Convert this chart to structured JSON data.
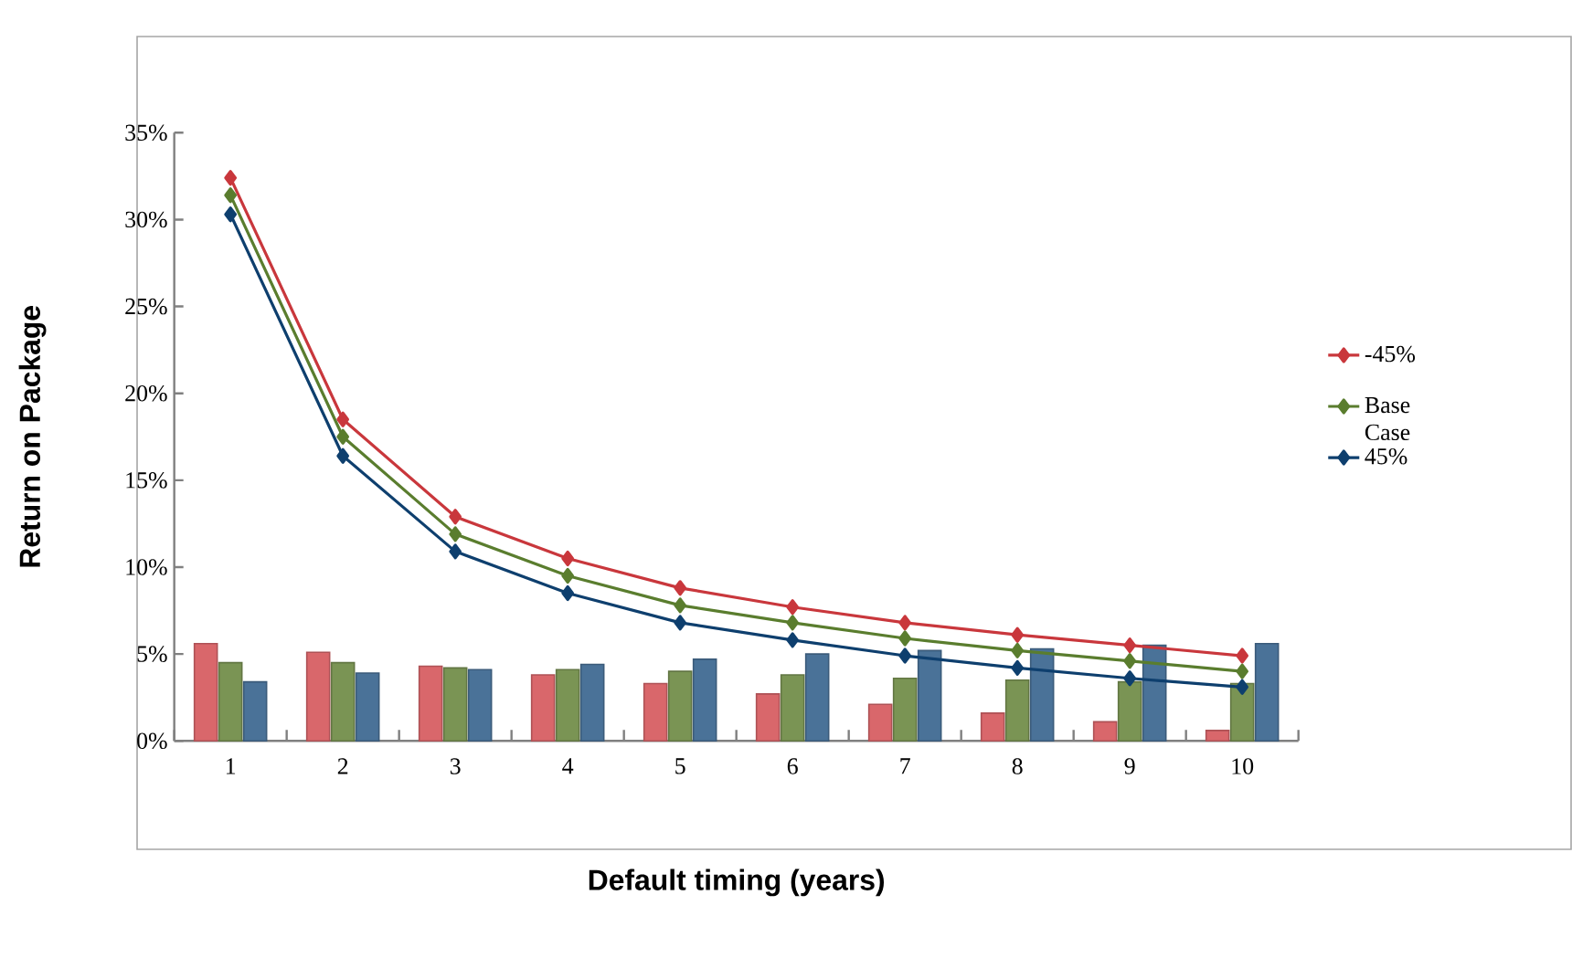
{
  "chart_data": {
    "type": "line",
    "xlabel": "Default timing (years)",
    "ylabel": "Return on Package",
    "categories": [
      "1",
      "2",
      "3",
      "4",
      "5",
      "6",
      "7",
      "8",
      "9",
      "10"
    ],
    "ylim": [
      0,
      35
    ],
    "yticks": [
      {
        "value": 0,
        "label": "0%"
      },
      {
        "value": 5,
        "label": "5%"
      },
      {
        "value": 10,
        "label": "10%"
      },
      {
        "value": 15,
        "label": "15%"
      },
      {
        "value": 20,
        "label": "20%"
      },
      {
        "value": 25,
        "label": "25%"
      },
      {
        "value": 30,
        "label": "30%"
      },
      {
        "value": 35,
        "label": "35%"
      }
    ],
    "series": [
      {
        "type": "bar",
        "color": "#d9676b",
        "values": [
          5.6,
          5.1,
          4.3,
          3.8,
          3.3,
          2.7,
          2.1,
          1.6,
          1.1,
          0.6
        ]
      },
      {
        "type": "bar",
        "color": "#7a9454",
        "values": [
          4.5,
          4.5,
          4.2,
          4.1,
          4.0,
          3.8,
          3.6,
          3.5,
          3.4,
          3.3
        ]
      },
      {
        "type": "bar",
        "color": "#4a7298",
        "values": [
          3.4,
          3.9,
          4.1,
          4.4,
          4.7,
          5.0,
          5.2,
          5.3,
          5.5,
          5.6
        ]
      },
      {
        "type": "line",
        "name": "-45%",
        "color": "#c9373c",
        "values": [
          32.4,
          18.5,
          12.9,
          10.5,
          8.8,
          7.7,
          6.8,
          6.1,
          5.5,
          4.9
        ]
      },
      {
        "type": "line",
        "name": "Base Case",
        "color": "#5a7d2e",
        "values": [
          31.4,
          17.5,
          11.9,
          9.5,
          7.8,
          6.8,
          5.9,
          5.2,
          4.6,
          4.0
        ]
      },
      {
        "type": "line",
        "name": "45%",
        "color": "#0e3f6e",
        "values": [
          30.3,
          16.4,
          10.9,
          8.5,
          6.8,
          5.8,
          4.9,
          4.2,
          3.6,
          3.1
        ]
      }
    ],
    "marker": "diamond",
    "line_style": "solid",
    "legend": "right",
    "grid": false
  }
}
